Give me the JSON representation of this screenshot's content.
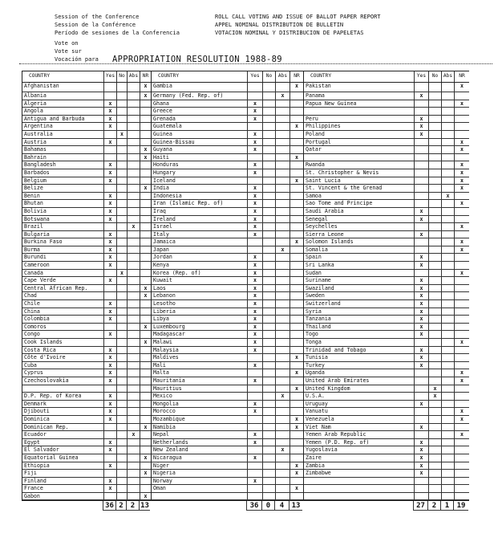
{
  "header": {
    "session_lines": [
      "Session of the Conference",
      "Session de la Conférence",
      "Período de sesiones de la Conferencia"
    ],
    "report_lines": [
      "ROLL CALL VOTING AND ISSUE OF BALLOT PAPER REPORT",
      "APPEL NOMINAL DISTRIBUTION DE BULLETIN",
      "VOTACION NOMINAL Y DISTRIBUCION DE PAPELETAS"
    ],
    "vote_lines": [
      "Vote on",
      "Vote sur",
      "Vocación para"
    ],
    "topic": "APPROPRIATION RESOLUTION 1988-89"
  },
  "columns": {
    "country": "COUNTRY",
    "yes": "Yes",
    "no": "No",
    "abs": "Abs",
    "nr": "NR"
  },
  "mark": "x",
  "sections": [
    {
      "rows": [
        [
          "Afghanistan",
          "NR"
        ],
        [
          "Albania",
          "NR"
        ],
        [
          "Algeria",
          "Yes"
        ],
        [
          "Angola",
          "Yes"
        ],
        [
          "Antigua and Barbuda",
          "Yes"
        ],
        [
          "Argentina",
          "Yes"
        ],
        [
          "Australia",
          "No"
        ],
        [
          "Austria",
          "Yes"
        ],
        [
          "Bahamas",
          "NR"
        ],
        [
          "Bahrain",
          "NR"
        ],
        [
          "Bangladesh",
          "Yes"
        ],
        [
          "Barbados",
          "Yes"
        ],
        [
          "Belgium",
          "Yes"
        ],
        [
          "Belize",
          "NR"
        ],
        [
          "Benin",
          "Yes"
        ],
        [
          "Bhutan",
          "Yes"
        ],
        [
          "Bolivia",
          "Yes"
        ],
        [
          "Botswana",
          "Yes"
        ],
        [
          "Brazil",
          "Abs"
        ],
        [
          "Bulgaria",
          "Yes"
        ],
        [
          "Burkina Faso",
          "Yes"
        ],
        [
          "Burma",
          "Yes"
        ],
        [
          "Burundi",
          "Yes"
        ],
        [
          "Cameroon",
          "Yes"
        ],
        [
          "Canada",
          "No"
        ],
        [
          "Cape Verde",
          "Yes"
        ],
        [
          "Central African Rep.",
          "NR"
        ],
        [
          "Chad",
          "NR"
        ],
        [
          "Chile",
          "Yes"
        ],
        [
          "China",
          "Yes"
        ],
        [
          "Colombia",
          "Yes"
        ],
        [
          "Comoros",
          "NR"
        ],
        [
          "Congo",
          "Yes"
        ],
        [
          "Cook Islands",
          "NR"
        ],
        [
          "Costa Rica",
          "Yes"
        ],
        [
          "Côte d'Ivoire",
          "Yes"
        ],
        [
          "Cuba",
          "Yes"
        ],
        [
          "Cyprus",
          "Yes"
        ],
        [
          "Czechoslovakia",
          "Yes"
        ],
        [
          "",
          ""
        ],
        [
          "D.P. Rep. of Korea",
          "Yes"
        ],
        [
          "Denmark",
          "Yes"
        ],
        [
          "Djibouti",
          "Yes"
        ],
        [
          "Dominica",
          "Yes"
        ],
        [
          "Dominican Rep.",
          "NR"
        ],
        [
          "Ecuador",
          "Abs"
        ],
        [
          "Egypt",
          "Yes"
        ],
        [
          "El Salvador",
          "Yes"
        ],
        [
          "Equatorial Guinea",
          "NR"
        ],
        [
          "Ethiopia",
          "Yes"
        ],
        [
          "Fiji",
          "NR"
        ],
        [
          "Finland",
          "Yes"
        ],
        [
          "France",
          "Yes"
        ],
        [
          "Gabon",
          "NR"
        ]
      ],
      "totals": [
        "36",
        "2",
        "2",
        "13"
      ]
    },
    {
      "rows": [
        [
          "Gambia",
          "NR"
        ],
        [
          "Germany (Fed. Rep. of)",
          "Abs"
        ],
        [
          "Ghana",
          "Yes"
        ],
        [
          "Greece",
          "Yes"
        ],
        [
          "Grenada",
          "Yes"
        ],
        [
          "Guatemala",
          "NR"
        ],
        [
          "Guinea",
          "Yes"
        ],
        [
          "Guinea-Bissau",
          "Yes"
        ],
        [
          "Guyana",
          "Yes"
        ],
        [
          "Haiti",
          "NR"
        ],
        [
          "Honduras",
          "Yes"
        ],
        [
          "Hungary",
          "Yes"
        ],
        [
          "Iceland",
          "NR"
        ],
        [
          "India",
          "Yes"
        ],
        [
          "Indonesia",
          "Yes"
        ],
        [
          "Iran (Islamic Rep. of)",
          "Yes"
        ],
        [
          "Iraq",
          "Yes"
        ],
        [
          "Ireland",
          "Yes"
        ],
        [
          "Israel",
          "Yes"
        ],
        [
          "Italy",
          "Yes"
        ],
        [
          "Jamaica",
          "NR"
        ],
        [
          "Japan",
          "Abs"
        ],
        [
          "Jordan",
          "Yes"
        ],
        [
          "Kenya",
          "Yes"
        ],
        [
          "Korea (Rep. of)",
          "Yes"
        ],
        [
          "Kuwait",
          "Yes"
        ],
        [
          "Laos",
          "Yes"
        ],
        [
          "Lebanon",
          "Yes"
        ],
        [
          "Lesotho",
          "Yes"
        ],
        [
          "Liberia",
          "Yes"
        ],
        [
          "Libya",
          "Yes"
        ],
        [
          "Luxembourg",
          "Yes"
        ],
        [
          "Madagascar",
          "Yes"
        ],
        [
          "Malawi",
          "Yes"
        ],
        [
          "Malaysia",
          "Yes"
        ],
        [
          "Maldives",
          "NR"
        ],
        [
          "Mali",
          "Yes"
        ],
        [
          "Malta",
          "NR"
        ],
        [
          "Mauritania",
          "Yes"
        ],
        [
          "Mauritius",
          "NR"
        ],
        [
          "Mexico",
          "Abs"
        ],
        [
          "Mongolia",
          "Yes"
        ],
        [
          "Morocco",
          "Yes"
        ],
        [
          "Mozambique",
          "NR"
        ],
        [
          "Namibia",
          "NR"
        ],
        [
          "Nepal",
          "Yes"
        ],
        [
          "Netherlands",
          "Yes"
        ],
        [
          "New Zealand",
          "Abs"
        ],
        [
          "Nicaragua",
          "Yes"
        ],
        [
          "Niger",
          "NR"
        ],
        [
          "Nigeria",
          "NR"
        ],
        [
          "Norway",
          "Yes"
        ],
        [
          "Oman",
          "NR"
        ],
        [
          "",
          ""
        ]
      ],
      "totals": [
        "36",
        "0",
        "4",
        "13"
      ]
    },
    {
      "rows": [
        [
          "Pakistan",
          "NR"
        ],
        [
          "Panama",
          "Yes"
        ],
        [
          "Papua New Guinea",
          "NR"
        ],
        [
          "",
          ""
        ],
        [
          "Peru",
          "Yes"
        ],
        [
          "Philippines",
          "Yes"
        ],
        [
          "Poland",
          "Yes"
        ],
        [
          "Portugal",
          "NR"
        ],
        [
          "Qatar",
          "NR"
        ],
        [
          "",
          ""
        ],
        [
          "Rwanda",
          "NR"
        ],
        [
          "St. Christopher & Nevis",
          "NR"
        ],
        [
          "Saint Lucia",
          "NR"
        ],
        [
          "St. Vincent & the Grenad",
          "NR"
        ],
        [
          "Samoa",
          "Abs"
        ],
        [
          "Sao Tome and Principe",
          "NR"
        ],
        [
          "Saudi Arabia",
          "Yes"
        ],
        [
          "Senegal",
          "Yes"
        ],
        [
          "Seychelles",
          "NR"
        ],
        [
          "Sierra Leone",
          "Yes"
        ],
        [
          "Solomon Islands",
          "NR"
        ],
        [
          "Somalia",
          "NR"
        ],
        [
          "Spain",
          "Yes"
        ],
        [
          "Sri Lanka",
          "Yes"
        ],
        [
          "Sudan",
          "NR"
        ],
        [
          "Suriname",
          "Yes"
        ],
        [
          "Swaziland",
          "Yes"
        ],
        [
          "Sweden",
          "Yes"
        ],
        [
          "Switzerland",
          "Yes"
        ],
        [
          "Syria",
          "Yes"
        ],
        [
          "Tanzania",
          "Yes"
        ],
        [
          "Thailand",
          "Yes"
        ],
        [
          "Togo",
          "Yes"
        ],
        [
          "Tonga",
          "NR"
        ],
        [
          "Trinidad and Tobago",
          "Yes"
        ],
        [
          "Tunisia",
          "Yes"
        ],
        [
          "Turkey",
          "Yes"
        ],
        [
          "Uganda",
          "NR"
        ],
        [
          "United Arab Emirates",
          "NR"
        ],
        [
          "United Kingdom",
          "No"
        ],
        [
          "U.S.A.",
          "No"
        ],
        [
          "Uruguay",
          "Yes"
        ],
        [
          "Vanuatu",
          "NR"
        ],
        [
          "Venezuela",
          "NR"
        ],
        [
          "Viet Nam",
          "Yes"
        ],
        [
          "Yemen Arab Republic",
          "NR"
        ],
        [
          "Yemen (P.D. Rep. of)",
          "Yes"
        ],
        [
          "Yugoslavia",
          "Yes"
        ],
        [
          "Zaire",
          "Yes"
        ],
        [
          "Zambia",
          "Yes"
        ],
        [
          "Zimbabwe",
          "Yes"
        ],
        [
          "",
          ""
        ],
        [
          "",
          ""
        ],
        [
          "",
          ""
        ]
      ],
      "totals": [
        "27",
        "2",
        "1",
        "19"
      ]
    }
  ]
}
